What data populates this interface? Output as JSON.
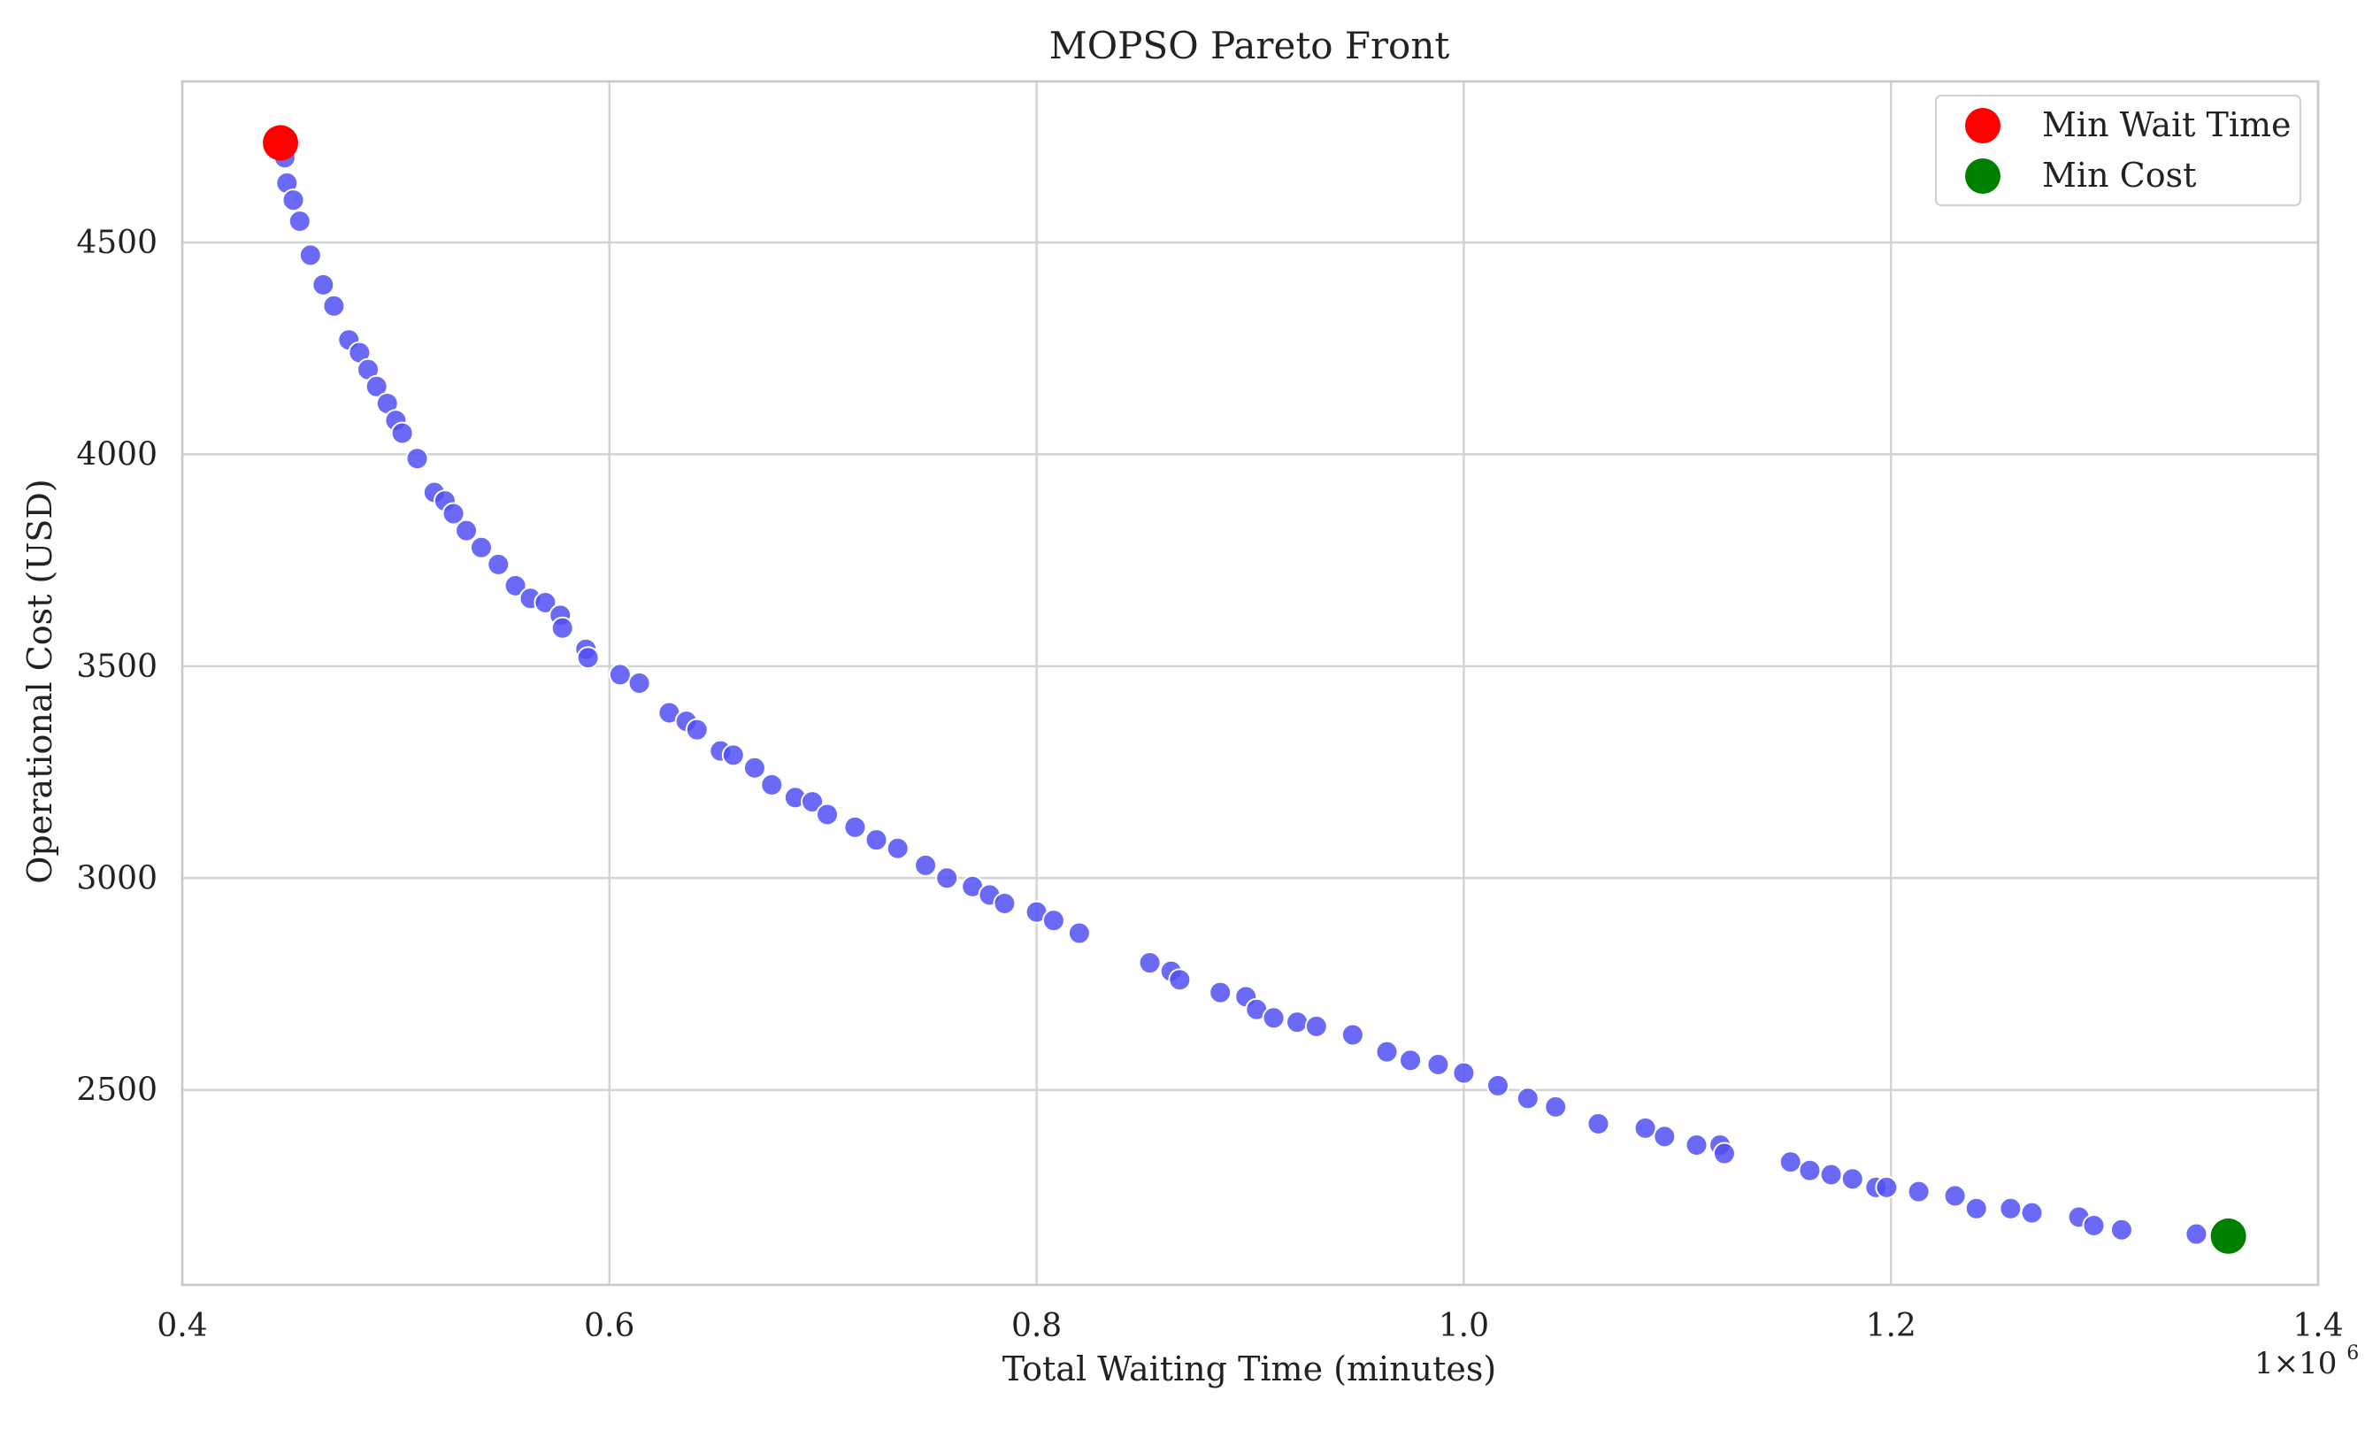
{
  "chart_data": {
    "type": "scatter",
    "title": "MOPSO Pareto Front",
    "xlabel": "Total Waiting Time (minutes)",
    "ylabel": "Operational Cost (USD)",
    "x_offset_label": "1×10",
    "x_offset_exponent": "6",
    "xlim": [
      0.4,
      1.4
    ],
    "ylim": [
      2040,
      4880
    ],
    "x_ticks": [
      0.4,
      0.6,
      0.8,
      1.0,
      1.2,
      1.4
    ],
    "x_tick_labels": [
      "0.4",
      "0.6",
      "0.8",
      "1.0",
      "1.2",
      "1.4"
    ],
    "y_ticks": [
      2500,
      3000,
      3500,
      4000,
      4500
    ],
    "y_tick_labels": [
      "2500",
      "3000",
      "3500",
      "4000",
      "4500"
    ],
    "grid": true,
    "legend_position": "top-right",
    "colors": {
      "pareto": "#5050f5",
      "min_wait": "#ff0000",
      "min_cost": "#008000",
      "grid": "#d3d3d3",
      "spine": "#c8c8c8"
    },
    "series": [
      {
        "role": "pareto",
        "x": [
          0.448,
          0.449,
          0.452,
          0.455,
          0.46,
          0.466,
          0.471,
          0.478,
          0.483,
          0.487,
          0.491,
          0.496,
          0.5,
          0.503,
          0.51,
          0.518,
          0.523,
          0.527,
          0.533,
          0.54,
          0.548,
          0.556,
          0.563,
          0.57,
          0.577,
          0.578,
          0.589,
          0.59,
          0.605,
          0.614,
          0.628,
          0.636,
          0.641,
          0.652,
          0.658,
          0.668,
          0.676,
          0.687,
          0.695,
          0.702,
          0.715,
          0.725,
          0.735,
          0.748,
          0.758,
          0.77,
          0.778,
          0.785,
          0.8,
          0.808,
          0.82,
          0.853,
          0.863,
          0.867,
          0.886,
          0.898,
          0.903,
          0.911,
          0.922,
          0.931,
          0.948,
          0.964,
          0.975,
          0.988,
          1.0,
          1.016,
          1.03,
          1.043,
          1.063,
          1.085,
          1.094,
          1.109,
          1.12,
          1.122,
          1.153,
          1.162,
          1.172,
          1.182,
          1.193,
          1.198,
          1.213,
          1.23,
          1.24,
          1.256,
          1.266,
          1.288,
          1.295,
          1.308,
          1.343
        ],
        "y": [
          4700,
          4640,
          4600,
          4550,
          4470,
          4400,
          4350,
          4270,
          4240,
          4200,
          4160,
          4120,
          4080,
          4050,
          3990,
          3910,
          3890,
          3860,
          3820,
          3780,
          3740,
          3690,
          3660,
          3650,
          3620,
          3590,
          3540,
          3520,
          3480,
          3460,
          3390,
          3370,
          3350,
          3300,
          3290,
          3260,
          3220,
          3190,
          3180,
          3150,
          3120,
          3090,
          3070,
          3030,
          3000,
          2980,
          2960,
          2940,
          2920,
          2900,
          2870,
          2800,
          2780,
          2760,
          2730,
          2720,
          2690,
          2670,
          2660,
          2650,
          2630,
          2590,
          2570,
          2560,
          2540,
          2510,
          2480,
          2460,
          2420,
          2410,
          2390,
          2370,
          2370,
          2350,
          2330,
          2310,
          2300,
          2290,
          2270,
          2270,
          2260,
          2250,
          2220,
          2220,
          2210,
          2200,
          2180,
          2170,
          2160
        ]
      },
      {
        "name": "Min Wait Time",
        "role": "min_wait",
        "x": [
          0.446
        ],
        "y": [
          4735
        ]
      },
      {
        "name": "Min Cost",
        "role": "min_cost",
        "x": [
          1.358
        ],
        "y": [
          2155
        ]
      }
    ]
  }
}
